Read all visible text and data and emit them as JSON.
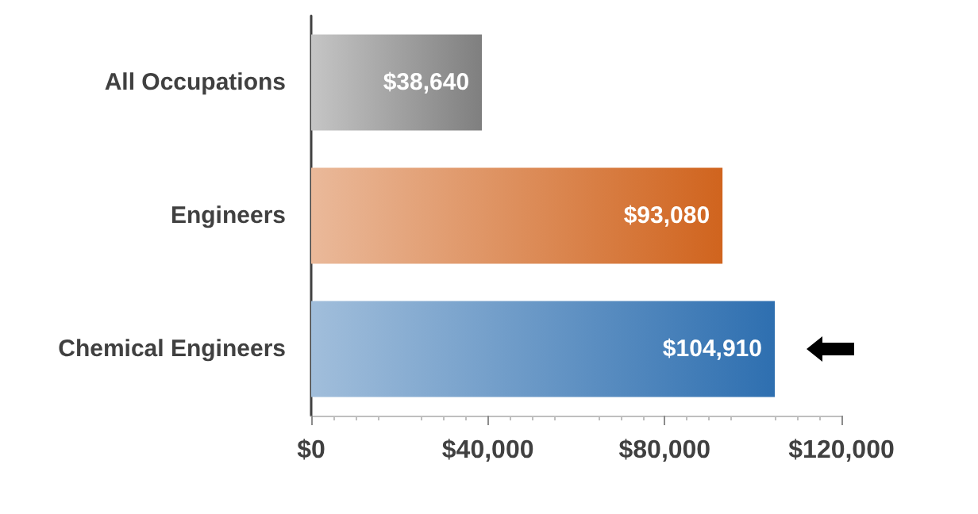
{
  "chart_data": {
    "type": "bar",
    "orientation": "horizontal",
    "categories": [
      "All Occupations",
      "Engineers",
      "Chemical Engineers"
    ],
    "values": [
      38640,
      93080,
      104910
    ],
    "colors": [
      "#7f7f7f",
      "#d0641e",
      "#2e6fb0"
    ],
    "value_labels": [
      "$38,640",
      "$93,080",
      "$104,910"
    ],
    "xlim": [
      0,
      120000
    ],
    "xticks": [
      {
        "value": 0,
        "label": "$0"
      },
      {
        "value": 40000,
        "label": "$40,000"
      },
      {
        "value": 80000,
        "label": "$80,000"
      },
      {
        "value": 120000,
        "label": "$120,000"
      }
    ],
    "grid": false
  }
}
